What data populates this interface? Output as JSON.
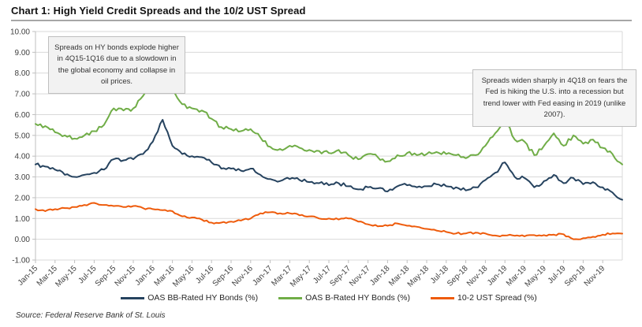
{
  "header": {
    "title": "Chart 1: High Yield Credit Spreads and the 10/2 UST Spread"
  },
  "annotations": {
    "left": "Spreads on HY bonds explode higher in 4Q15-1Q16 due to a slowdown in the global economy and collapse in oil prices.",
    "right": "Spreads widen sharply in 4Q18 on fears the Fed is hiking the U.S. into a recession but trend lower with Fed easing in 2019 (unlike 2007)."
  },
  "footer": {
    "source": "Source: Federal Reserve Bank of St. Louis"
  },
  "chart_data": {
    "type": "line",
    "title": "Chart 1: High Yield Credit Spreads and the 10/2 UST Spread",
    "x_unit": "months, Jan-2015 through Jan-2020, one value per month",
    "x_tick_labels": [
      "Jan-15",
      "Mar-15",
      "May-15",
      "Jul-15",
      "Sep-15",
      "Nov-15",
      "Jan-16",
      "Mar-16",
      "May-16",
      "Jul-16",
      "Sep-16",
      "Nov-16",
      "Jan-17",
      "Mar-17",
      "May-17",
      "Jul-17",
      "Sep-17",
      "Nov-17",
      "Jan-18",
      "Mar-18",
      "May-18",
      "Jul-18",
      "Sep-18",
      "Nov-18",
      "Jan-19",
      "Mar-19",
      "May-19",
      "Jul-19",
      "Sep-19",
      "Nov-19"
    ],
    "x_ticks_every_n_months": 2,
    "ylim": [
      -1,
      10
    ],
    "y_tick_labels": [
      "10.00",
      "9.00",
      "8.00",
      "7.00",
      "6.00",
      "5.00",
      "4.00",
      "3.00",
      "2.00",
      "1.00",
      "0.00",
      "-1.00"
    ],
    "grid": true,
    "legend_position": "bottom",
    "series": [
      {
        "name": "OAS BB-Rated HY Bonds (%)",
        "color": "#26435f",
        "values": [
          3.6,
          3.5,
          3.35,
          3.1,
          3.0,
          3.1,
          3.2,
          3.35,
          3.85,
          3.8,
          3.85,
          4.1,
          4.7,
          5.75,
          4.5,
          4.1,
          4.0,
          3.95,
          3.7,
          3.4,
          3.4,
          3.3,
          3.4,
          3.1,
          2.9,
          2.8,
          2.9,
          2.85,
          2.75,
          2.7,
          2.6,
          2.7,
          2.55,
          2.4,
          2.5,
          2.45,
          2.3,
          2.55,
          2.6,
          2.5,
          2.55,
          2.65,
          2.55,
          2.5,
          2.35,
          2.5,
          2.85,
          3.2,
          3.7,
          3.0,
          2.95,
          2.5,
          2.8,
          3.1,
          2.7,
          2.95,
          2.65,
          2.75,
          2.5,
          2.25,
          1.9
        ]
      },
      {
        "name": "OAS B-Rated HY Bonds (%)",
        "color": "#70ad47",
        "values": [
          5.55,
          5.45,
          5.15,
          5.0,
          4.85,
          5.0,
          5.2,
          5.5,
          6.3,
          6.2,
          6.3,
          6.9,
          7.9,
          9.0,
          7.2,
          6.5,
          6.3,
          6.2,
          5.8,
          5.4,
          5.3,
          5.2,
          5.3,
          4.9,
          4.45,
          4.35,
          4.5,
          4.4,
          4.3,
          4.25,
          4.15,
          4.3,
          4.05,
          3.85,
          4.1,
          3.95,
          3.75,
          4.05,
          4.15,
          4.05,
          4.1,
          4.2,
          4.1,
          4.05,
          3.9,
          4.05,
          4.5,
          5.1,
          5.8,
          4.8,
          4.7,
          4.05,
          4.5,
          5.1,
          4.5,
          5.0,
          4.6,
          4.8,
          4.4,
          4.1,
          3.6
        ]
      },
      {
        "name": "10-2 UST Spread (%)",
        "color": "#ee5b0b",
        "values": [
          1.45,
          1.35,
          1.45,
          1.5,
          1.55,
          1.65,
          1.75,
          1.65,
          1.6,
          1.55,
          1.6,
          1.5,
          1.45,
          1.4,
          1.35,
          1.1,
          1.05,
          0.95,
          0.8,
          0.8,
          0.85,
          0.9,
          1.0,
          1.25,
          1.3,
          1.25,
          1.25,
          1.15,
          1.1,
          1.0,
          1.0,
          0.95,
          1.0,
          0.85,
          0.72,
          0.62,
          0.65,
          0.76,
          0.65,
          0.6,
          0.5,
          0.42,
          0.35,
          0.28,
          0.28,
          0.32,
          0.28,
          0.18,
          0.18,
          0.17,
          0.14,
          0.2,
          0.2,
          0.22,
          0.24,
          0.0,
          0.05,
          0.12,
          0.22,
          0.28,
          0.27
        ]
      }
    ],
    "colors": {
      "grid": "#d9d9d9",
      "axis": "#bfbfbf",
      "tick_text": "#404040",
      "title_rule": "#a6a6a6"
    }
  }
}
